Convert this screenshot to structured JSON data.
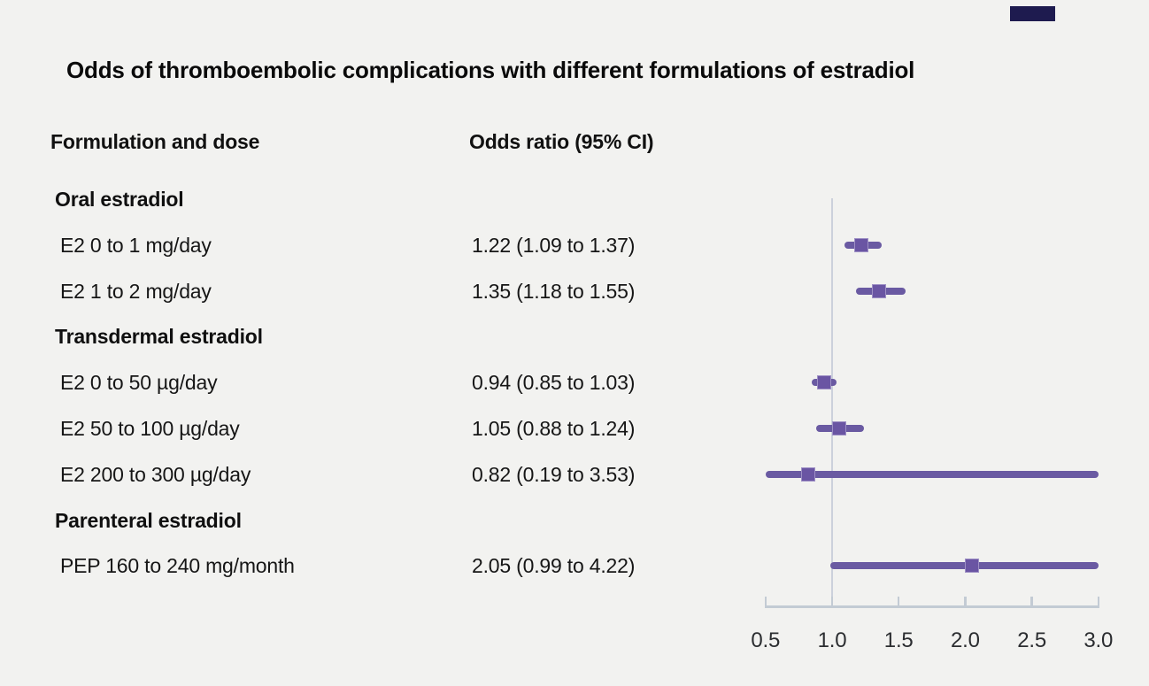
{
  "title": "Odds of thromboembolic complications with different formulations of estradiol",
  "columns": {
    "formulation": "Formulation and dose",
    "odds_ratio": "Odds ratio (95% CI)"
  },
  "brand_bar_color": "#1e1b4f",
  "chart_data": {
    "type": "forest",
    "title": "Odds of thromboembolic complications with different formulations of estradiol",
    "xlabel": "Odds ratio",
    "axis": {
      "min": 0.5,
      "max": 3.0,
      "reference": 1.0,
      "ticks": [
        "0.5",
        "1.0",
        "1.5",
        "2.0",
        "2.5",
        "3.0"
      ],
      "tick_values": [
        0.5,
        1.0,
        1.5,
        2.0,
        2.5,
        3.0
      ]
    },
    "colors": {
      "marker": "#6a5aa2",
      "reference_line": "#ccd1db",
      "axis_line": "#c3cbd4"
    },
    "rows": [
      {
        "kind": "group",
        "label": "Oral estradiol"
      },
      {
        "kind": "item",
        "label": "E2 0 to 1 mg/day",
        "or_text": "1.22 (1.09 to 1.37)",
        "est": 1.22,
        "lo": 1.09,
        "hi": 1.37
      },
      {
        "kind": "item",
        "label": "E2 1 to 2 mg/day",
        "or_text": "1.35 (1.18 to 1.55)",
        "est": 1.35,
        "lo": 1.18,
        "hi": 1.55
      },
      {
        "kind": "group",
        "label": "Transdermal estradiol"
      },
      {
        "kind": "item",
        "label": "E2 0 to 50 µg/day",
        "or_text": "0.94 (0.85 to 1.03)",
        "est": 0.94,
        "lo": 0.85,
        "hi": 1.03
      },
      {
        "kind": "item",
        "label": "E2 50 to 100 µg/day",
        "or_text": "1.05 (0.88 to 1.24)",
        "est": 1.05,
        "lo": 0.88,
        "hi": 1.24
      },
      {
        "kind": "item",
        "label": "E2 200 to 300 µg/day",
        "or_text": "0.82 (0.19 to 3.53)",
        "est": 0.82,
        "lo": 0.19,
        "hi": 3.53
      },
      {
        "kind": "group",
        "label": "Parenteral estradiol"
      },
      {
        "kind": "item",
        "label": "PEP 160 to 240 mg/month",
        "or_text": "2.05 (0.99 to 4.22)",
        "est": 2.05,
        "lo": 0.99,
        "hi": 4.22
      }
    ]
  }
}
